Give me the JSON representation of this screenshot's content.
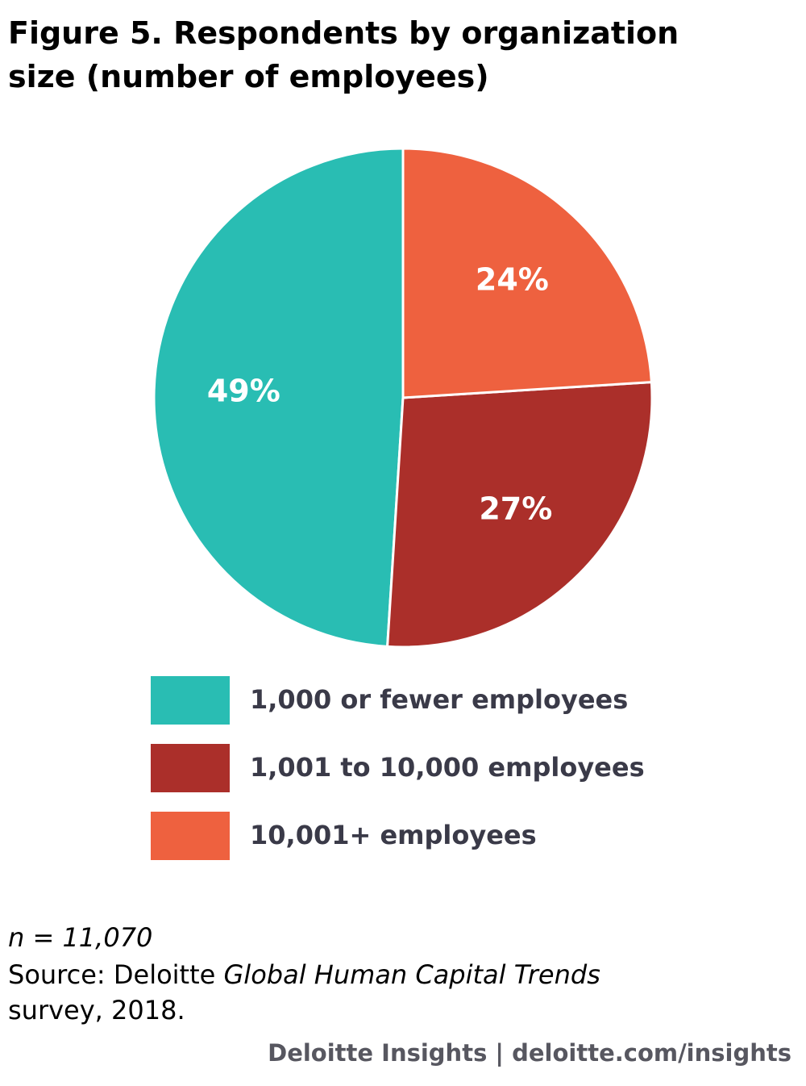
{
  "chart_data": {
    "type": "pie",
    "title": "Figure 5. Respondents by organization size (number of employees)",
    "categories": [
      "1,000 or fewer employees",
      "1,001 to 10,000 employees",
      "10,001+ employees"
    ],
    "values": [
      49,
      27,
      24
    ],
    "value_labels": [
      "49%",
      "27%",
      "24%"
    ],
    "colors": [
      "#29bdb3",
      "#ab2f2a",
      "#ee613f"
    ],
    "note": "n = 11,070",
    "source": [
      "Source: Deloitte",
      "Global Human Capital Trends",
      "survey, 2018."
    ],
    "credit": "Deloitte Insights | deloitte.com/insights"
  }
}
